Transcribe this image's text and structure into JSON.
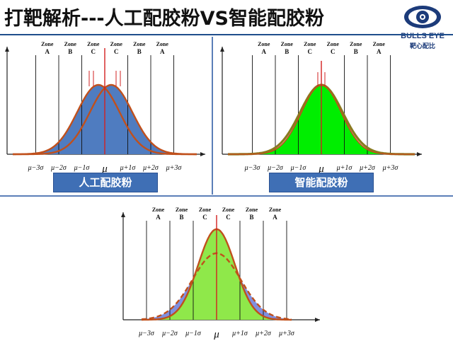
{
  "title": "打靶解析---人工配胶粉VS智能配胶粉",
  "logo": {
    "brand": "BULLS EYE",
    "subtitle": "靶心配比",
    "icon": "bulls-eye-logo-icon"
  },
  "zone_word": "Zone",
  "zone_letters": [
    "A",
    "B",
    "C",
    "C",
    "B",
    "A"
  ],
  "sigma_labels": [
    "μ−3σ",
    "μ−2σ",
    "μ−1σ",
    "μ",
    "μ+1σ",
    "μ+2σ",
    "μ+3σ"
  ],
  "panels": {
    "manual": {
      "label": "人工配胶粉"
    },
    "smart": {
      "label": "智能配胶粉"
    },
    "compare": {
      "label": ""
    }
  },
  "colors": {
    "blue_fill": "#4f7cc0",
    "green_fill": "#00ee00",
    "light_green_fill": "#8fe84a",
    "curve": "#c0501c",
    "center_line": "#d22020",
    "title_bar": "#1f4e8c"
  }
}
